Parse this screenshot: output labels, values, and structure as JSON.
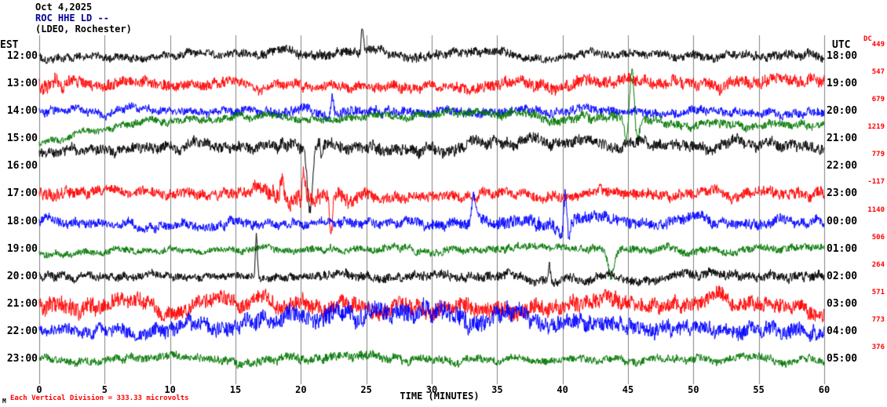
{
  "header": {
    "date": "Oct 4,2025",
    "station": "ROC HHE LD --",
    "location": "(LDEO, Rochester)"
  },
  "axis": {
    "left": "EST",
    "right": "UTC",
    "dc": "DC",
    "xlabel": "TIME (MINUTES)"
  },
  "footer": {
    "scale_note": "Each Vertical Division =  333.33 microvolts",
    "watermark": "M"
  },
  "chart_data": {
    "type": "line",
    "title": "ROC HHE LD -- (LDEO, Rochester) webicorder, Oct 4,2025",
    "xlabel": "TIME (MINUTES)",
    "x_range": [
      0,
      60
    ],
    "x_tick_step": 5,
    "x_ticks": [
      0,
      5,
      10,
      15,
      20,
      25,
      30,
      35,
      40,
      45,
      50,
      55,
      60
    ],
    "grid": true,
    "grid_color": "#808080",
    "vertical_division_microvolts": 333.33,
    "trace_colors_cycle": [
      "#000000",
      "#ff0000",
      "#0000ff",
      "#007700"
    ],
    "rows": [
      {
        "est": "12:00",
        "utc": "18:00",
        "dc": "449",
        "color": "#000000",
        "seed": 101,
        "env": [
          [
            0,
            7
          ],
          [
            12,
            6
          ],
          [
            20,
            8
          ],
          [
            30,
            8
          ],
          [
            40,
            6
          ],
          [
            52,
            7
          ],
          [
            60,
            8
          ]
        ],
        "drift": [
          [
            0,
            0
          ],
          [
            20,
            -4
          ],
          [
            40,
            -1
          ],
          [
            60,
            -3
          ]
        ],
        "events": [
          {
            "m": 24.7,
            "a": 32,
            "w": 0.12
          }
        ]
      },
      {
        "est": "13:00",
        "utc": "19:00",
        "dc": "547",
        "color": "#ff0000",
        "seed": 202,
        "env": [
          [
            0,
            13
          ],
          [
            5,
            9
          ],
          [
            15,
            8
          ],
          [
            30,
            8
          ],
          [
            44,
            10
          ],
          [
            60,
            9
          ]
        ],
        "drift": [
          [
            0,
            0
          ],
          [
            40,
            0
          ],
          [
            45,
            -7
          ],
          [
            49,
            -4
          ],
          [
            60,
            -2
          ]
        ],
        "events": []
      },
      {
        "est": "14:00",
        "utc": "20:00",
        "dc": "679",
        "color": "#0000ff",
        "seed": 303,
        "env": [
          [
            0,
            7
          ],
          [
            10,
            6
          ],
          [
            25,
            8
          ],
          [
            38,
            7
          ],
          [
            60,
            7
          ]
        ],
        "drift": [
          [
            0,
            0
          ],
          [
            30,
            -2
          ],
          [
            46,
            3
          ],
          [
            60,
            1
          ]
        ],
        "events": [
          {
            "m": 22.4,
            "a": 24,
            "w": 0.15
          }
        ]
      },
      {
        "est": "15:00",
        "utc": "21:00",
        "dc": "1219",
        "color": "#007700",
        "seed": 404,
        "env": [
          [
            0,
            5
          ],
          [
            10,
            6
          ],
          [
            30,
            6
          ],
          [
            41,
            8
          ],
          [
            47,
            7
          ],
          [
            60,
            6
          ]
        ],
        "drift": [
          [
            0,
            6
          ],
          [
            8,
            -22
          ],
          [
            20,
            -26
          ],
          [
            40,
            -30
          ],
          [
            50,
            -18
          ],
          [
            60,
            -14
          ]
        ],
        "events": [
          {
            "m": 45.3,
            "a": 62,
            "w": 0.5,
            "osc": 6
          }
        ]
      },
      {
        "est": "16:00",
        "utc": "22:00",
        "dc": "779",
        "color": "#000000",
        "seed": 505,
        "env": [
          [
            0,
            8
          ],
          [
            15,
            9
          ],
          [
            25,
            10
          ],
          [
            40,
            9
          ],
          [
            60,
            9
          ]
        ],
        "drift": [
          [
            0,
            -18
          ],
          [
            10,
            -24
          ],
          [
            25,
            -26
          ],
          [
            45,
            -28
          ],
          [
            60,
            -28
          ]
        ],
        "events": [
          {
            "m": 20.7,
            "a": -82,
            "w": 0.28
          },
          {
            "m": 21.6,
            "a": -20,
            "w": 0.12
          }
        ]
      },
      {
        "est": "17:00",
        "utc": "23:00",
        "dc": "-117",
        "color": "#ff0000",
        "seed": 606,
        "env": [
          [
            0,
            11
          ],
          [
            5,
            8
          ],
          [
            16,
            9
          ],
          [
            19,
            16
          ],
          [
            23,
            13
          ],
          [
            27,
            8
          ],
          [
            42,
            8
          ],
          [
            60,
            9
          ]
        ],
        "drift": [
          [
            0,
            0
          ],
          [
            60,
            0
          ]
        ],
        "events": [
          {
            "m": 18.6,
            "a": 26,
            "w": 0.2
          },
          {
            "m": 20.2,
            "a": 30,
            "w": 0.15
          },
          {
            "m": 22.3,
            "a": -50,
            "w": 0.18
          }
        ]
      },
      {
        "est": "18:00",
        "utc": "00:00",
        "dc": "1140",
        "color": "#0000ff",
        "seed": 707,
        "env": [
          [
            0,
            8
          ],
          [
            20,
            7
          ],
          [
            32,
            9
          ],
          [
            39,
            12
          ],
          [
            44,
            9
          ],
          [
            60,
            8
          ]
        ],
        "drift": [
          [
            0,
            0
          ],
          [
            25,
            2
          ],
          [
            60,
            0
          ]
        ],
        "events": [
          {
            "m": 33.2,
            "a": 32,
            "w": 0.2
          },
          {
            "m": 40.2,
            "a": 45,
            "w": 0.3,
            "osc": 8
          }
        ]
      },
      {
        "est": "19:00",
        "utc": "01:00",
        "dc": "506",
        "color": "#007700",
        "seed": 808,
        "env": [
          [
            0,
            6
          ],
          [
            12,
            5
          ],
          [
            30,
            6
          ],
          [
            60,
            6
          ]
        ],
        "drift": [
          [
            0,
            6
          ],
          [
            8,
            1
          ],
          [
            20,
            0
          ],
          [
            60,
            0
          ]
        ],
        "events": [
          {
            "m": 43.7,
            "a": -35,
            "w": 0.3
          }
        ]
      },
      {
        "est": "20:00",
        "utc": "02:00",
        "dc": "264",
        "color": "#000000",
        "seed": 909,
        "env": [
          [
            0,
            7
          ],
          [
            15,
            6
          ],
          [
            30,
            8
          ],
          [
            45,
            7
          ],
          [
            60,
            8
          ]
        ],
        "drift": [
          [
            0,
            0
          ],
          [
            60,
            0
          ]
        ],
        "events": [
          {
            "m": 16.6,
            "a": 55,
            "w": 0.1
          },
          {
            "m": 39.0,
            "a": 20,
            "w": 0.12
          }
        ]
      },
      {
        "est": "21:00",
        "utc": "03:00",
        "dc": "571",
        "color": "#ff0000",
        "seed": 1010,
        "env": [
          [
            0,
            15
          ],
          [
            8,
            12
          ],
          [
            18,
            12
          ],
          [
            28,
            13
          ],
          [
            38,
            14
          ],
          [
            48,
            12
          ],
          [
            60,
            12
          ]
        ],
        "drift": [
          [
            0,
            0
          ],
          [
            20,
            2
          ],
          [
            35,
            4
          ],
          [
            50,
            0
          ],
          [
            60,
            2
          ]
        ],
        "events": []
      },
      {
        "est": "22:00",
        "utc": "04:00",
        "dc": "773",
        "color": "#0000ff",
        "seed": 1111,
        "env": [
          [
            0,
            9
          ],
          [
            12,
            12
          ],
          [
            20,
            15
          ],
          [
            30,
            16
          ],
          [
            40,
            13
          ],
          [
            50,
            12
          ],
          [
            60,
            12
          ]
        ],
        "drift": [
          [
            0,
            0
          ],
          [
            14,
            -3
          ],
          [
            20,
            -20
          ],
          [
            27,
            -26
          ],
          [
            34,
            -22
          ],
          [
            42,
            -10
          ],
          [
            50,
            -5
          ],
          [
            60,
            -4
          ]
        ],
        "events": []
      },
      {
        "est": "23:00",
        "utc": "05:00",
        "dc": "376",
        "color": "#007700",
        "seed": 1212,
        "env": [
          [
            0,
            6
          ],
          [
            14,
            7
          ],
          [
            22,
            8
          ],
          [
            35,
            6
          ],
          [
            50,
            6
          ],
          [
            60,
            6
          ]
        ],
        "drift": [
          [
            0,
            0
          ],
          [
            60,
            0
          ]
        ],
        "events": []
      }
    ]
  }
}
